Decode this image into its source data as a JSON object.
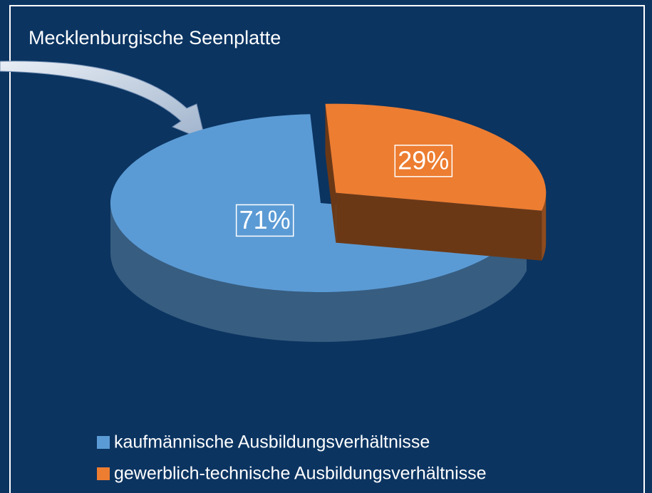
{
  "chart_data": {
    "type": "pie3d",
    "title": "Mecklenburgische Seenplatte",
    "categories": [
      "kaufmännische Ausbildungsverhältnisse",
      "gewerblich-technische Ausbildungsverhältnisse"
    ],
    "values": [
      71,
      29
    ],
    "value_labels": [
      "71%",
      "29%"
    ],
    "colors": [
      "#5b9bd5",
      "#ed7d31"
    ],
    "legend": "bottom"
  }
}
